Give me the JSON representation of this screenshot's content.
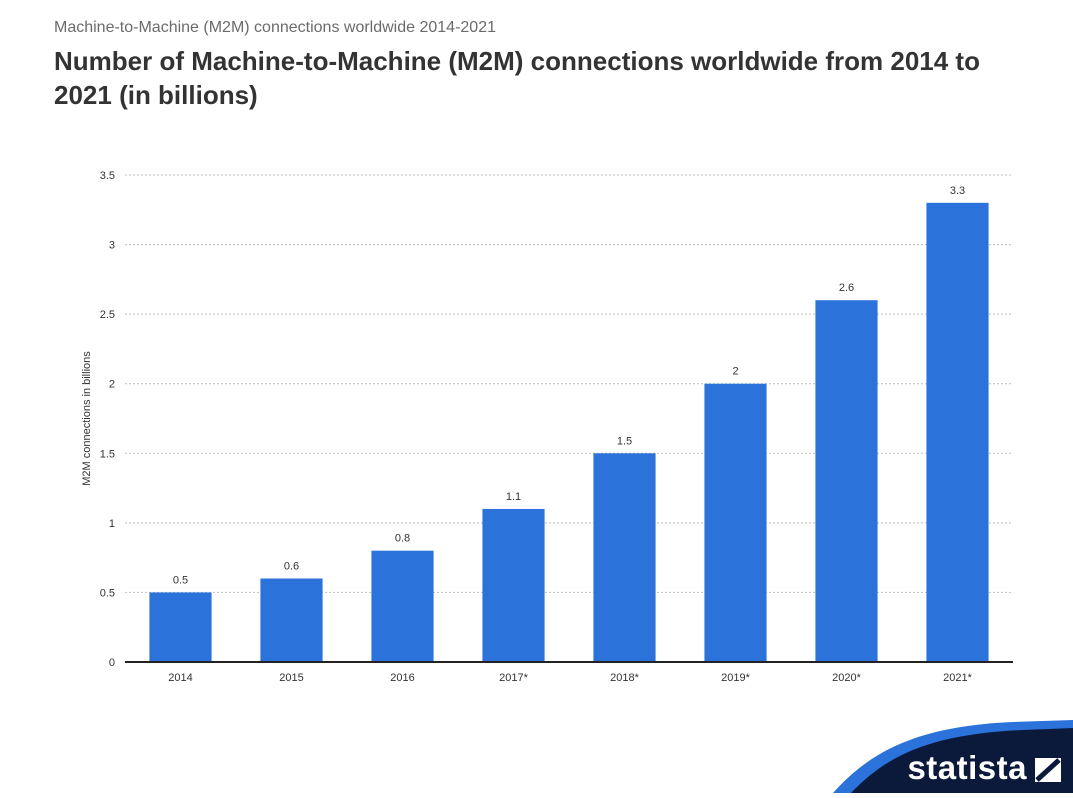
{
  "header": {
    "subtitle": "Machine-to-Machine (M2M) connections worldwide 2014-2021",
    "title": "Number of Machine-to-Machine (M2M) connections worldwide from 2014 to 2021 (in billions)"
  },
  "brand": {
    "name": "statista",
    "icon": "statista-logo-icon"
  },
  "colors": {
    "bar": "#2b73db",
    "axis": "#222222",
    "grid": "#bfbfbf",
    "brand_dark": "#0b1a3a",
    "brand_accent": "#2b73db"
  },
  "chart_data": {
    "type": "bar",
    "categories": [
      "2014",
      "2015",
      "2016",
      "2017*",
      "2018*",
      "2019*",
      "2020*",
      "2021*"
    ],
    "values": [
      0.5,
      0.6,
      0.8,
      1.1,
      1.5,
      2,
      2.6,
      3.3
    ],
    "value_labels": [
      "0.5",
      "0.6",
      "0.8",
      "1.1",
      "1.5",
      "2",
      "2.6",
      "3.3"
    ],
    "ylabel": "M2M connections in billions",
    "xlabel": "",
    "ylim": [
      0,
      3.5
    ],
    "yticks": [
      0,
      0.5,
      1,
      1.5,
      2,
      2.5,
      3,
      3.5
    ],
    "ytick_labels": [
      "0",
      "0.5",
      "1",
      "1.5",
      "2",
      "2.5",
      "3",
      "3.5"
    ],
    "grid": true,
    "legend": "none"
  }
}
